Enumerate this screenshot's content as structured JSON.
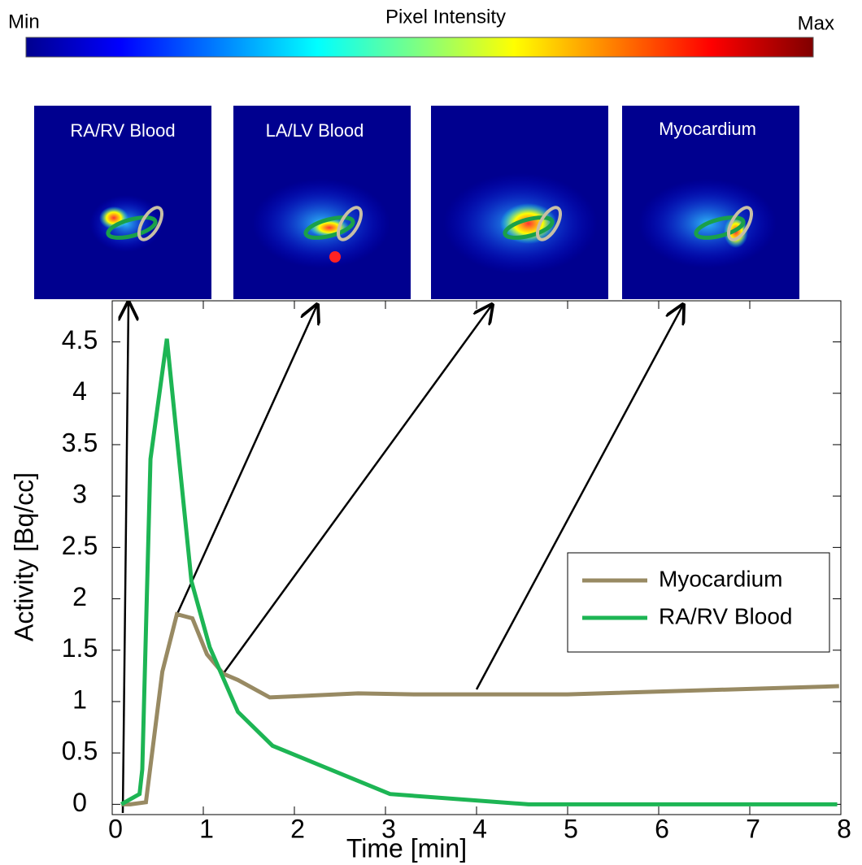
{
  "colorbar": {
    "title": "Pixel Intensity",
    "min_label": "Min",
    "max_label": "Max"
  },
  "panels": [
    "RA/RV Blood",
    "LA/LV Blood",
    "Myocardium"
  ],
  "chart_data": {
    "type": "line",
    "xlabel": "Time [min]",
    "ylabel": "Activity [Bq/cc]",
    "xlim": [
      0,
      8
    ],
    "xticks": [
      0,
      1,
      2,
      3,
      4,
      5,
      6,
      7,
      8
    ],
    "ylim": [
      -0.1,
      4.9
    ],
    "yticks": [
      0,
      0.5,
      1,
      1.5,
      2,
      2.5,
      3,
      3.5,
      4,
      4.5
    ],
    "legend": "lower-right",
    "series": [
      {
        "name": "Myocardium",
        "color": "#988a63",
        "x": [
          0.1,
          0.2,
          0.37,
          0.55,
          0.71,
          0.88,
          1.04,
          1.22,
          1.38,
          1.73,
          2.7,
          3.32,
          5.0,
          7.98
        ],
        "values": [
          0,
          0,
          0.02,
          1.29,
          1.85,
          1.81,
          1.46,
          1.27,
          1.21,
          1.04,
          1.08,
          1.07,
          1.07,
          1.15
        ]
      },
      {
        "name": "RA/RV Blood",
        "color": "#1db554",
        "x": [
          0.1,
          0.3,
          0.33,
          0.42,
          0.6,
          0.87,
          1.07,
          1.38,
          1.76,
          3.05,
          4.57,
          7.96
        ],
        "values": [
          0,
          0.1,
          0.34,
          3.36,
          4.53,
          2.17,
          1.53,
          0.9,
          0.57,
          0.1,
          0,
          0
        ]
      }
    ]
  }
}
